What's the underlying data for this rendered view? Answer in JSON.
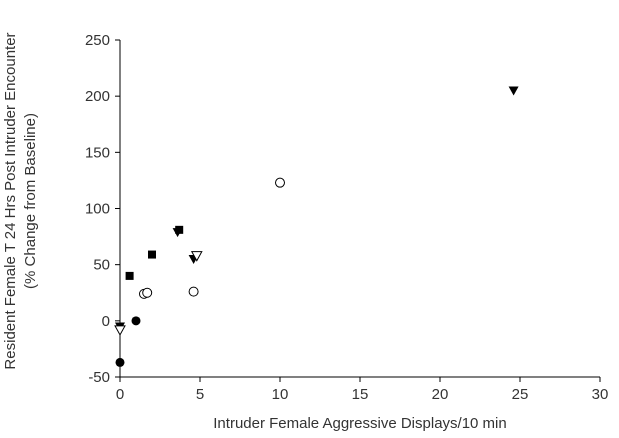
{
  "chart_data": {
    "type": "scatter",
    "xlabel": "Intruder Female Aggressive Displays/10 min",
    "ylabel_line1": "Resident Female T 24 Hrs Post Intruder Encounter",
    "ylabel_line2": "(% Change from Baseline)",
    "xlim": [
      0,
      30
    ],
    "ylim": [
      -50,
      250
    ],
    "xticks": [
      0,
      5,
      10,
      15,
      20,
      25,
      30
    ],
    "yticks": [
      -50,
      0,
      50,
      100,
      150,
      200,
      250
    ],
    "grid": false,
    "legend": "none",
    "series": [
      {
        "marker": "filled-circle",
        "points": [
          [
            0,
            -37
          ],
          [
            1,
            0
          ]
        ]
      },
      {
        "marker": "open-circle",
        "points": [
          [
            1.5,
            24
          ],
          [
            1.7,
            25
          ],
          [
            4.6,
            26
          ],
          [
            10,
            123
          ]
        ]
      },
      {
        "marker": "filled-square",
        "points": [
          [
            0.6,
            40
          ],
          [
            2,
            59
          ],
          [
            3.7,
            81
          ]
        ]
      },
      {
        "marker": "filled-triangle-down",
        "points": [
          [
            0,
            -5
          ],
          [
            3.6,
            79
          ],
          [
            4.6,
            55
          ],
          [
            24.6,
            205
          ]
        ]
      },
      {
        "marker": "open-triangle-down",
        "points": [
          [
            0,
            -8
          ],
          [
            4.8,
            58
          ]
        ]
      }
    ]
  }
}
